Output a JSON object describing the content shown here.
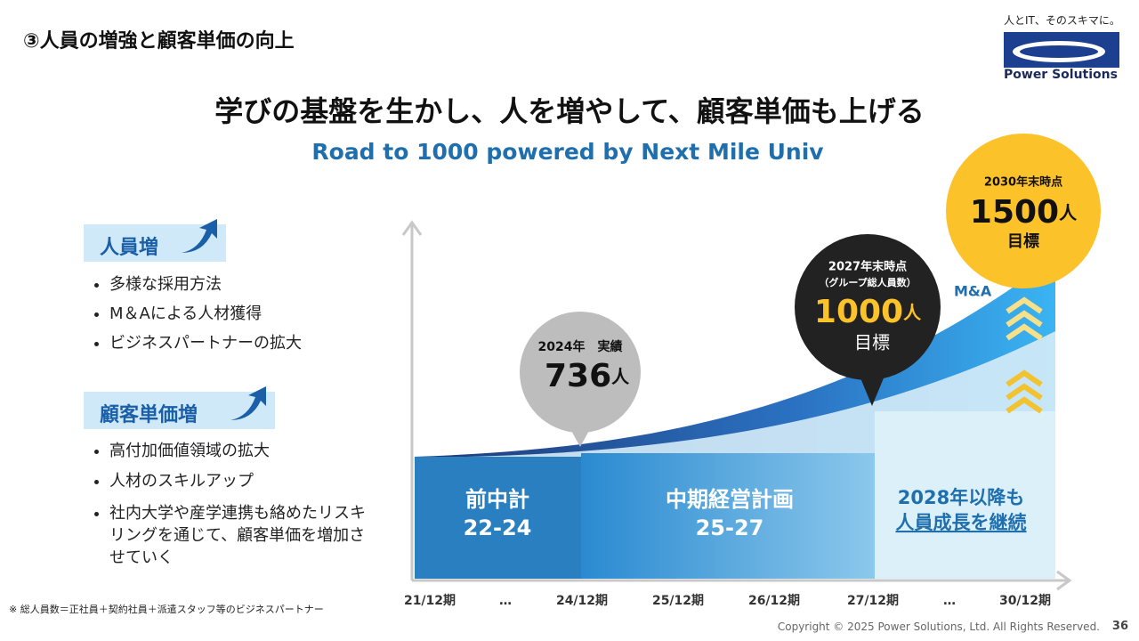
{
  "header": {
    "section_title": "③人員の増強と顧客単価の向上",
    "tagline": "人とIT、そのスキマに。",
    "logo_name": "Power Solutions",
    "headline": "学びの基盤を生かし、人を増やして、顧客単価も上げる",
    "subtitle": "Road to 1000 powered by Next Mile Univ"
  },
  "groups": [
    {
      "heading": "人員増",
      "items": [
        "多様な採用方法",
        "M＆Aによる人材獲得",
        "ビジネスパートナーの拡大"
      ]
    },
    {
      "heading": "顧客単価増",
      "items": [
        "高付加価値領域の拡大",
        "人材のスキルアップ",
        "社内大学や産学連携も絡めたリスキリングを通じて、顧客単価を増加させていく"
      ]
    }
  ],
  "bubbles": {
    "actual_2024": {
      "label": "2024年　実績",
      "number": "736",
      "unit": "人"
    },
    "target_2027": {
      "label": "2027年末時点",
      "note": "（グループ総人員数）",
      "number": "1000",
      "unit": "人",
      "suffix": "目標"
    },
    "target_2030": {
      "label": "2030年末時点",
      "number": "1500",
      "unit": "人",
      "suffix": "目標"
    }
  },
  "ma_label": "M&A",
  "phases": [
    {
      "name": "前中計",
      "period": "22-24"
    },
    {
      "name": "中期経営計画",
      "period": "25-27"
    },
    {
      "name": "2028年以降も",
      "period": "人員成長を継続"
    }
  ],
  "x_labels": [
    "21/12期",
    "…",
    "24/12期",
    "25/12期",
    "26/12期",
    "27/12期",
    "…",
    "30/12期"
  ],
  "footnote": "※ 総人員数＝正社員＋契約社員＋派遣スタッフ等のビジネスパートナー",
  "footer": {
    "copyright": "Copyright © 2025 Power Solutions, Ltd. All Rights Reserved.",
    "page": "36"
  }
}
